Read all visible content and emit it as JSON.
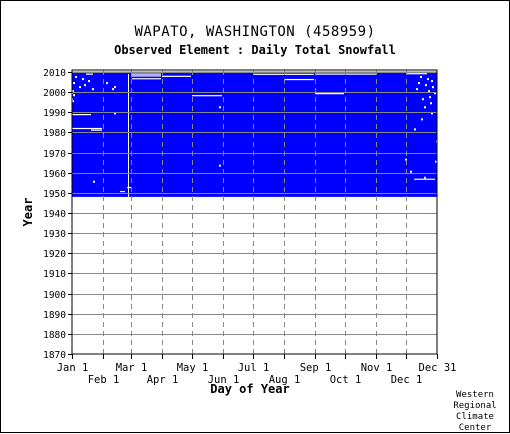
{
  "chart_data": {
    "type": "heatmap",
    "title": "WAPATO, WASHINGTON   (458959)",
    "subtitle": "Observed Element : Daily Total Snowfall",
    "xlabel": "Day of Year",
    "ylabel": "Year",
    "x_range_days": [
      1,
      366
    ],
    "ylim": [
      1870,
      2011
    ],
    "y_ticks": [
      2010,
      2000,
      1990,
      1980,
      1970,
      1960,
      1950,
      1940,
      1930,
      1920,
      1910,
      1900,
      1890,
      1880,
      1870
    ],
    "x_ticks_top_row": [
      {
        "label": "Jan 1",
        "day": 1
      },
      {
        "label": "Mar 1",
        "day": 60
      },
      {
        "label": "May 1",
        "day": 121
      },
      {
        "label": "Jul 1",
        "day": 182
      },
      {
        "label": "Sep 1",
        "day": 244
      },
      {
        "label": "Nov 1",
        "day": 305
      },
      {
        "label": "Dec 31",
        "day": 366
      }
    ],
    "x_ticks_bottom_row": [
      {
        "label": "Feb 1",
        "day": 32
      },
      {
        "label": "Apr 1",
        "day": 91
      },
      {
        "label": "Jun 1",
        "day": 152
      },
      {
        "label": "Aug 1",
        "day": 213
      },
      {
        "label": "Oct 1",
        "day": 274
      },
      {
        "label": "Dec 1",
        "day": 335
      }
    ],
    "data_period": [
      1948,
      2010
    ],
    "fill_color": "#0000ff",
    "missing_color": "#ffffff",
    "grid": true,
    "missing_bands": [
      {
        "year": 2010,
        "start_day": 1,
        "end_day": 366
      },
      {
        "year": 2008.5,
        "start_day": 15,
        "end_day": 22
      },
      {
        "year": 2007.6,
        "start_day": 60,
        "end_day": 90
      },
      {
        "year": 2008.5,
        "start_day": 60,
        "end_day": 90
      },
      {
        "year": 2006.2,
        "start_day": 61,
        "end_day": 90
      },
      {
        "year": 2007.4,
        "start_day": 91,
        "end_day": 120
      },
      {
        "year": 2008.4,
        "start_day": 182,
        "end_day": 243
      },
      {
        "year": 2005.8,
        "start_day": 213,
        "end_day": 243
      },
      {
        "year": 2008.5,
        "start_day": 244,
        "end_day": 305
      },
      {
        "year": 2008.7,
        "start_day": 335,
        "end_day": 356
      },
      {
        "year": 1997.8,
        "start_day": 121,
        "end_day": 151
      },
      {
        "year": 1998.8,
        "start_day": 244,
        "end_day": 273
      },
      {
        "year": 1988.4,
        "start_day": 1,
        "end_day": 20
      },
      {
        "year": 1981.5,
        "start_day": 1,
        "end_day": 31
      },
      {
        "year": 1980.7,
        "start_day": 20,
        "end_day": 31
      },
      {
        "year": 1956.3,
        "start_day": 343,
        "end_day": 364
      },
      {
        "year": 1952.2,
        "start_day": 56,
        "end_day": 60
      },
      {
        "year": 1950.2,
        "start_day": 49,
        "end_day": 54
      }
    ],
    "missing_days": [
      {
        "year": 2007,
        "day": 5
      },
      {
        "year": 2006,
        "day": 12
      },
      {
        "year": 2005,
        "day": 18
      },
      {
        "year": 2004,
        "day": 3
      },
      {
        "year": 2003,
        "day": 14
      },
      {
        "year": 2002,
        "day": 9
      },
      {
        "year": 2001,
        "day": 22
      },
      {
        "year": 2000,
        "day": 2
      },
      {
        "year": 1999,
        "day": 1
      },
      {
        "year": 1998,
        "day": 3
      },
      {
        "year": 1996,
        "day": 1
      },
      {
        "year": 1995,
        "day": 2
      },
      {
        "year": 2004,
        "day": 36
      },
      {
        "year": 2001,
        "day": 42
      },
      {
        "year": 2002,
        "day": 44
      },
      {
        "year": 1989,
        "day": 44
      },
      {
        "year": 1955,
        "day": 23
      },
      {
        "year": 1992,
        "day": 149
      },
      {
        "year": 1963,
        "day": 149
      },
      {
        "year": 1986,
        "day": 351
      },
      {
        "year": 1966,
        "day": 335
      },
      {
        "year": 1960,
        "day": 340
      },
      {
        "year": 1957,
        "day": 354
      },
      {
        "year": 1981,
        "day": 344
      },
      {
        "year": 2007,
        "day": 350
      },
      {
        "year": 2006,
        "day": 357
      },
      {
        "year": 2005,
        "day": 361
      },
      {
        "year": 2004,
        "day": 348
      },
      {
        "year": 2003,
        "day": 355
      },
      {
        "year": 2002,
        "day": 362
      },
      {
        "year": 2001,
        "day": 346
      },
      {
        "year": 2000,
        "day": 358
      },
      {
        "year": 1999,
        "day": 364
      },
      {
        "year": 1997,
        "day": 359
      },
      {
        "year": 1996,
        "day": 352
      },
      {
        "year": 1994,
        "day": 360
      },
      {
        "year": 1992,
        "day": 354
      },
      {
        "year": 1989,
        "day": 361
      },
      {
        "year": 1975,
        "day": 366
      },
      {
        "year": 1965,
        "day": 365
      }
    ],
    "missing_columns": [
      {
        "day": 57,
        "year_from": 1948,
        "year_to": 2008
      }
    ]
  },
  "credit": [
    "Western",
    "Regional",
    "Climate",
    "Center"
  ]
}
